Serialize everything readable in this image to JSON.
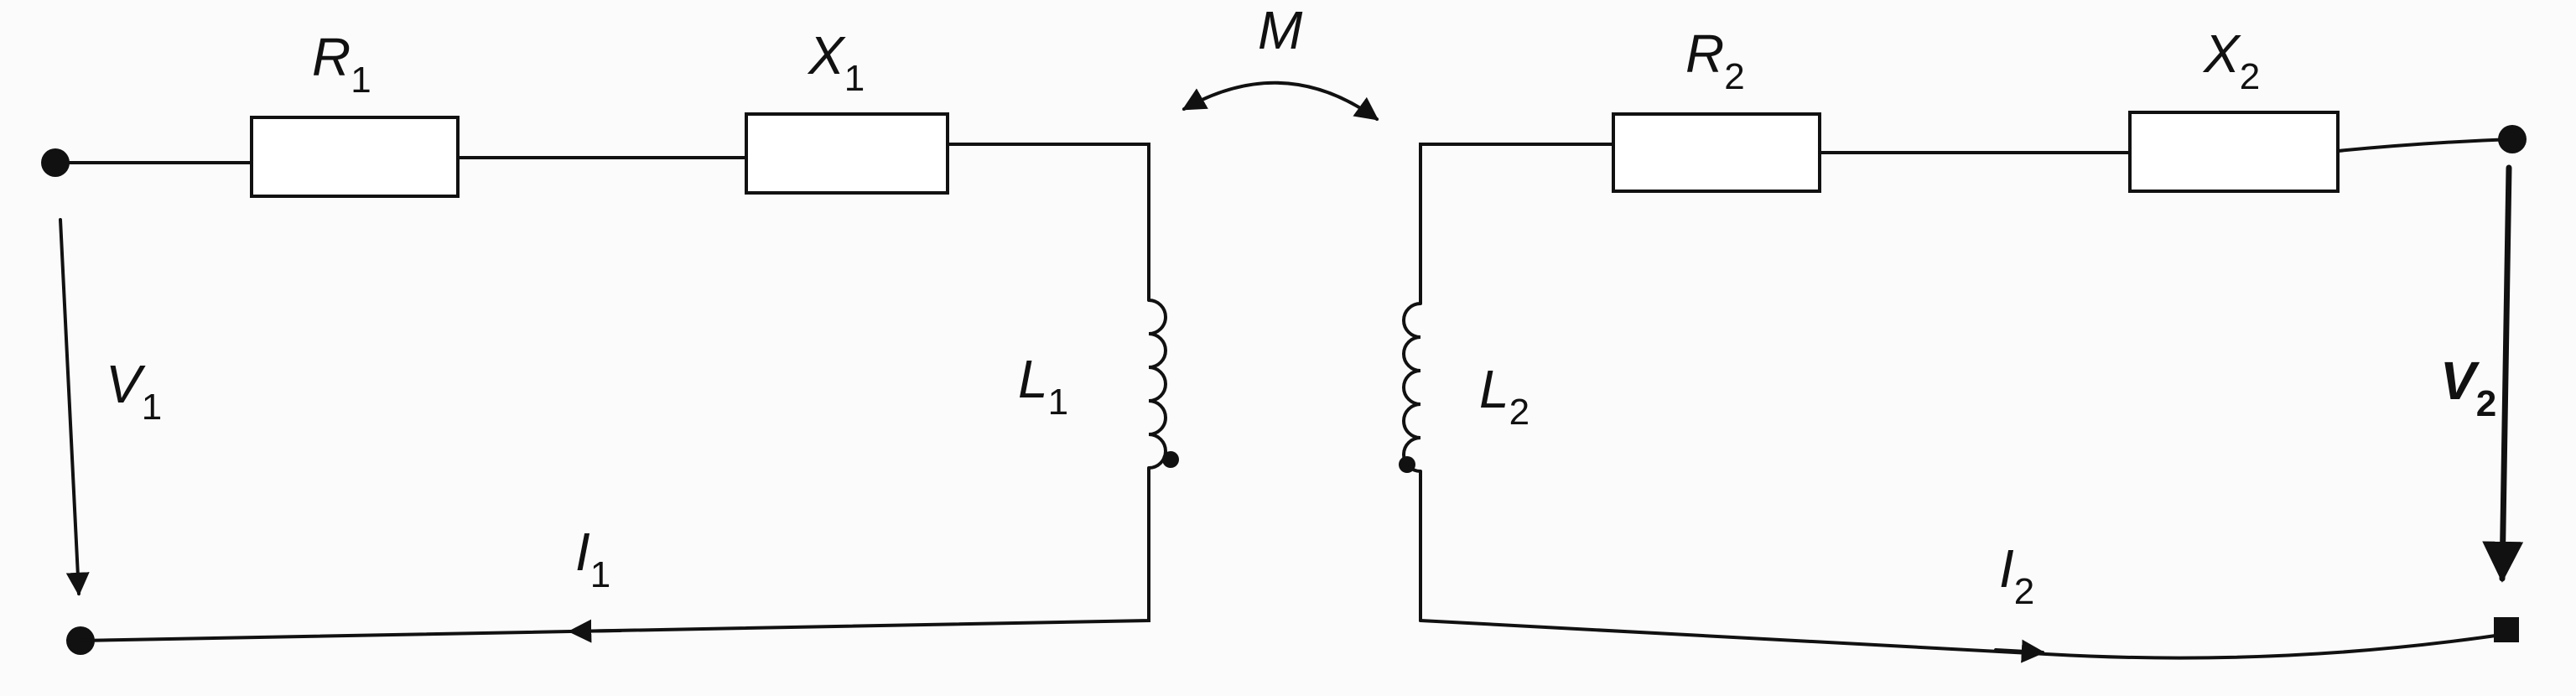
{
  "diagram": {
    "primary": {
      "resistor": {
        "letter": "R",
        "sub": "1"
      },
      "reactance": {
        "letter": "X",
        "sub": "1"
      },
      "inductor": {
        "letter": "L",
        "sub": "1"
      },
      "voltage": {
        "letter": "V",
        "sub": "1"
      },
      "current": {
        "letter": "I",
        "sub": "1"
      }
    },
    "coupling": {
      "letter": "M"
    },
    "secondary": {
      "resistor": {
        "letter": "R",
        "sub": "2"
      },
      "reactance": {
        "letter": "X",
        "sub": "2"
      },
      "inductor": {
        "letter": "L",
        "sub": "2"
      },
      "voltage": {
        "letter": "V",
        "sub": "2"
      },
      "current": {
        "letter": "I",
        "sub": "2"
      }
    }
  }
}
